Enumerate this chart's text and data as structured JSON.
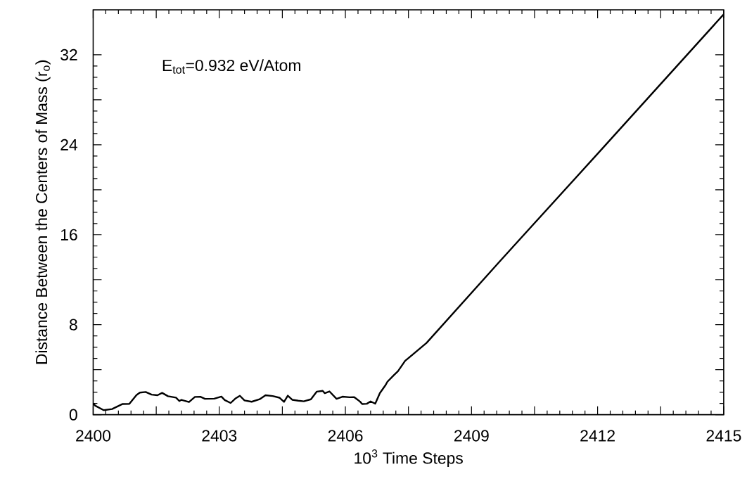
{
  "chart_data": {
    "type": "line",
    "xlabel": "10$^{3}$ Time Steps",
    "ylabel": "Distance Between the Centers of Mass (r$_{o}$)",
    "annotations": [
      "E$_{tot}$=0.932 eV/Atom"
    ],
    "xlim": [
      2400,
      2415
    ],
    "ylim": [
      0,
      36
    ],
    "xticks": [
      2400,
      {
        "value": 2401.5,
        "label": null
      },
      2403,
      {
        "value": 2404.5,
        "label": null
      },
      2406,
      {
        "value": 2407.5,
        "label": null
      },
      2409,
      {
        "value": 2410.5,
        "label": null
      },
      2412,
      {
        "value": 2413.5,
        "label": null
      },
      2415
    ],
    "yticks": [
      0,
      {
        "value": 4,
        "label": null
      },
      8,
      {
        "value": 12,
        "label": null
      },
      16,
      {
        "value": 20,
        "label": null
      },
      24,
      {
        "value": 28,
        "label": null
      },
      32
    ],
    "marker": "none",
    "line_style": "solid",
    "grid": false,
    "series": [
      {
        "color": "#000000",
        "x": [
          2400.0,
          2400.05,
          2400.25,
          2400.45,
          2400.7,
          2400.86,
          2401.03,
          2401.11,
          2401.25,
          2401.39,
          2401.53,
          2401.64,
          2401.78,
          2401.97,
          2402.05,
          2402.1,
          2402.28,
          2402.42,
          2402.55,
          2402.66,
          2402.88,
          2403.05,
          2403.13,
          2403.27,
          2403.38,
          2403.49,
          2403.6,
          2403.77,
          2403.96,
          2404.1,
          2404.27,
          2404.43,
          2404.54,
          2404.63,
          2404.74,
          2404.88,
          2405.01,
          2405.18,
          2405.32,
          2405.46,
          2405.51,
          2405.62,
          2405.79,
          2405.93,
          2406.1,
          2406.21,
          2406.35,
          2406.4,
          2406.51,
          2406.6,
          2406.71,
          2406.82,
          2406.95,
          2407.0,
          2407.15,
          2407.25,
          2407.42,
          2407.93,
          2409.69,
          2412.0,
          2415.0
        ],
        "values": [
          1.0,
          0.8,
          0.4,
          0.5,
          0.95,
          0.96,
          1.75,
          1.96,
          2.02,
          1.78,
          1.73,
          1.94,
          1.64,
          1.52,
          1.21,
          1.32,
          1.12,
          1.58,
          1.59,
          1.41,
          1.42,
          1.61,
          1.3,
          1.04,
          1.43,
          1.68,
          1.27,
          1.15,
          1.37,
          1.73,
          1.66,
          1.51,
          1.14,
          1.69,
          1.32,
          1.24,
          1.19,
          1.37,
          2.05,
          2.12,
          1.91,
          2.07,
          1.41,
          1.6,
          1.55,
          1.56,
          1.16,
          0.95,
          0.97,
          1.18,
          0.98,
          1.92,
          2.6,
          2.93,
          3.5,
          3.86,
          4.78,
          6.38,
          13.7,
          23.2,
          35.6
        ]
      }
    ]
  }
}
